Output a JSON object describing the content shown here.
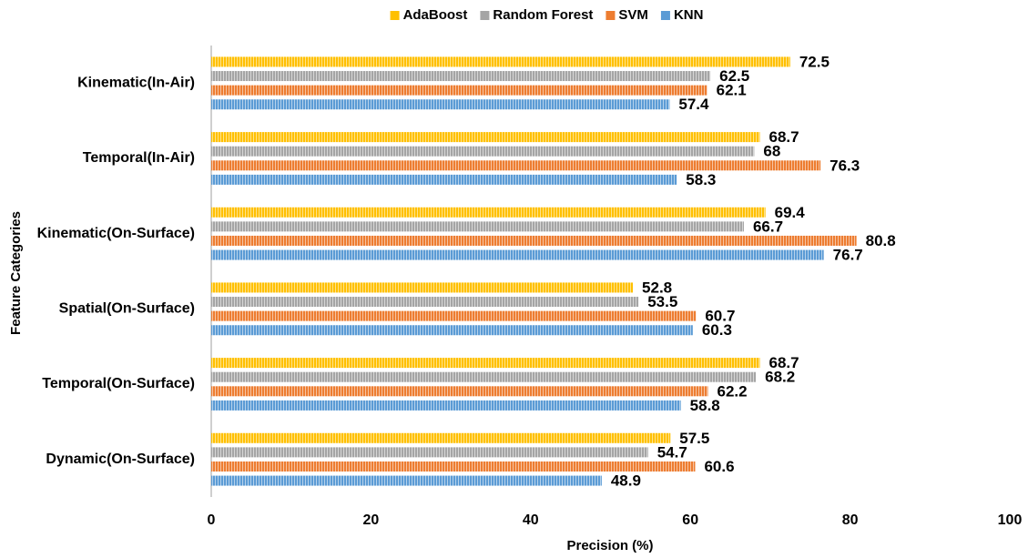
{
  "chart_data": {
    "type": "bar",
    "orientation": "horizontal",
    "xlabel": "Precision (%)",
    "ylabel": "Feature Categories",
    "categories": [
      "Kinematic(In-Air)",
      "Temporal(In-Air)",
      "Kinematic(On-Surface)",
      "Spatial(On-Surface)",
      "Temporal(On-Surface)",
      "Dynamic(On-Surface)"
    ],
    "series": [
      {
        "name": "AdaBoost",
        "color": "#FFC000",
        "values": [
          72.5,
          68.7,
          69.4,
          52.8,
          68.7,
          57.5
        ]
      },
      {
        "name": "Random Forest",
        "color": "#A5A5A5",
        "values": [
          62.5,
          68,
          66.7,
          53.5,
          68.2,
          54.7
        ]
      },
      {
        "name": "SVM",
        "color": "#ED7D31",
        "values": [
          62.1,
          76.3,
          80.8,
          60.7,
          62.2,
          60.6
        ]
      },
      {
        "name": "KNN",
        "color": "#5B9BD5",
        "values": [
          57.4,
          58.3,
          76.7,
          60.3,
          58.8,
          48.9
        ]
      }
    ],
    "xlim": [
      0,
      100
    ],
    "xticks": [
      0,
      20,
      40,
      60,
      80,
      100
    ],
    "grid": false,
    "legend": "top"
  }
}
